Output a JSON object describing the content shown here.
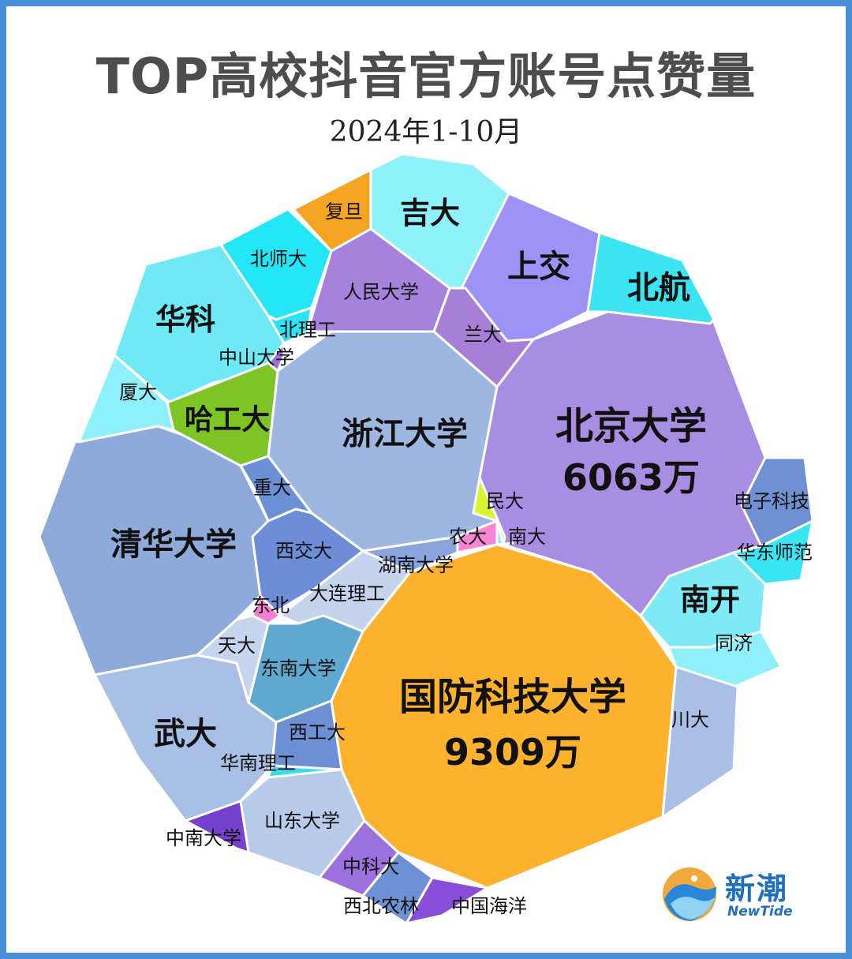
{
  "title": "TOP高校抖音官方账号点赞量",
  "subtitle": "2024年1-10月",
  "logo": {
    "name": "新潮",
    "sub": "NewTide"
  },
  "chart_data": {
    "type": "voronoi-treemap",
    "title": "TOP高校抖音官方账号点赞量",
    "subtitle": "2024年1-10月",
    "unit": "万",
    "cells": [
      {
        "name": "国防科技大学",
        "value": 9309,
        "value_label": "9309万",
        "color": "#fdb22e"
      },
      {
        "name": "北京大学",
        "value": 6063,
        "value_label": "6063万",
        "color": "#a88ee3"
      },
      {
        "name": "浙江大学",
        "color": "#9db7e0"
      },
      {
        "name": "清华大学",
        "color": "#8eaadb"
      },
      {
        "name": "武大",
        "color": "#a9c0e6"
      },
      {
        "name": "华科",
        "color": "#6fe9f5"
      },
      {
        "name": "哈工大",
        "color": "#7ec424"
      },
      {
        "name": "吉大",
        "color": "#8ff1fa"
      },
      {
        "name": "上交",
        "color": "#9c93f7"
      },
      {
        "name": "北航",
        "color": "#3de4f2"
      },
      {
        "name": "南开",
        "color": "#7eeaf6"
      },
      {
        "name": "人民大学",
        "color": "#a583dc"
      },
      {
        "name": "北师大",
        "color": "#22e6f6"
      },
      {
        "name": "复旦",
        "color": "#f4a423"
      },
      {
        "name": "兰大",
        "color": "#a77fd6"
      },
      {
        "name": "北理工",
        "color": "#2de2f5"
      },
      {
        "name": "中山大学",
        "color": "#9d72d8"
      },
      {
        "name": "厦大",
        "color": "#8ef0fa"
      },
      {
        "name": "重大",
        "color": "#6b90d3"
      },
      {
        "name": "西交大",
        "color": "#6d8ed6"
      },
      {
        "name": "东北",
        "color": "#f47fd0"
      },
      {
        "name": "大连理工",
        "color": "#c6d3ed"
      },
      {
        "name": "湖南大学",
        "color": "#8aa5db"
      },
      {
        "name": "民大",
        "color": "#d7f42c"
      },
      {
        "name": "农大",
        "color": "#f486d4"
      },
      {
        "name": "南大",
        "color": "#8fe8f8"
      },
      {
        "name": "东南大学",
        "color": "#5fa8d0"
      },
      {
        "name": "天大",
        "color": "#c7d4ee"
      },
      {
        "name": "西工大",
        "color": "#6d8fd3"
      },
      {
        "name": "华南理工",
        "color": "#3dd9f0"
      },
      {
        "name": "山东大学",
        "color": "#b9cbeb"
      },
      {
        "name": "中南大学",
        "color": "#7442cf"
      },
      {
        "name": "中科大",
        "color": "#9d71dd"
      },
      {
        "name": "西北农林",
        "color": "#6e90d4"
      },
      {
        "name": "中国海洋",
        "color": "#8a4fd8"
      },
      {
        "name": "电子科技",
        "color": "#6f90d2"
      },
      {
        "name": "华东师范",
        "color": "#39e4f3"
      },
      {
        "name": "同济",
        "color": "#8ff0fb"
      },
      {
        "name": "川大",
        "color": "#aabfe6"
      }
    ]
  }
}
